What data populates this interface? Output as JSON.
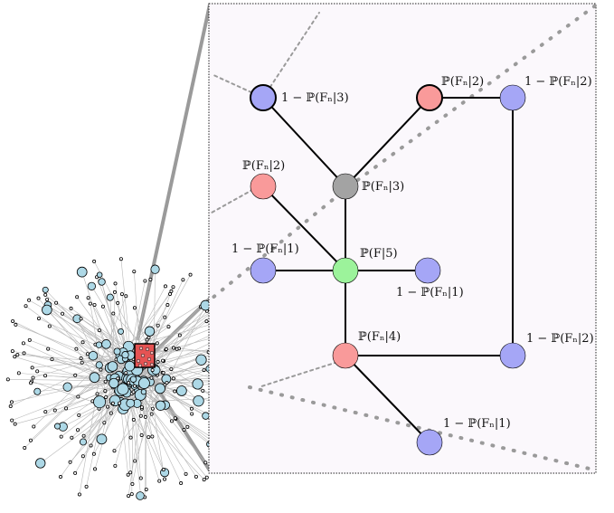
{
  "colors": {
    "inset_bg": "#fbf8fc",
    "blue": "#a5a6f6",
    "red": "#f99a9a",
    "grey": "#a3a3a3",
    "green": "#9cf39b",
    "light_blue": "#add8e6",
    "highlight_red": "#e55353",
    "edge": "#000000",
    "dotted": "#9a9a9a"
  },
  "inset": {
    "labels": {
      "n_blue_top": "1 − ℙ(Fₙ|3)",
      "n_red_top": "ℙ(Fₙ|2)",
      "n_blue_top_right": "1 − ℙ(Fₙ|2)",
      "n_red_left": "ℙ(Fₙ|2)",
      "n_grey": "ℙ(Fₙ|3)",
      "n_blue_left": "1 − ℙ(Fₙ|1)",
      "n_green": "ℙ(F|5)",
      "n_blue_right": "1 − ℙ(Fₙ|1)",
      "n_red_bottom": "ℙ(Fₙ|4)",
      "n_blue_bottom_right": "1 − ℙ(Fₙ|2)",
      "n_blue_bottom": "1 − ℙ(Fₙ|1)"
    }
  }
}
